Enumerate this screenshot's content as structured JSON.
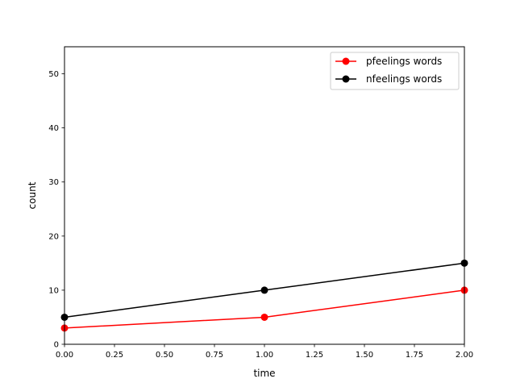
{
  "chart_data": {
    "type": "line",
    "title": "",
    "xlabel": "time",
    "ylabel": "count",
    "xlim": [
      0,
      2
    ],
    "ylim": [
      0,
      55
    ],
    "x_ticks": [
      "0.00",
      "0.25",
      "0.50",
      "0.75",
      "1.00",
      "1.25",
      "1.50",
      "1.75",
      "2.00"
    ],
    "y_ticks": [
      "0",
      "10",
      "20",
      "30",
      "40",
      "50"
    ],
    "x": [
      0,
      1,
      2
    ],
    "series": [
      {
        "name": "pfeelings words",
        "values": [
          3,
          5,
          10
        ],
        "color": "#ff0000"
      },
      {
        "name": "nfeelings words",
        "values": [
          5,
          10,
          15
        ],
        "color": "#000000"
      }
    ],
    "grid": false,
    "legend_position": "top-right"
  }
}
